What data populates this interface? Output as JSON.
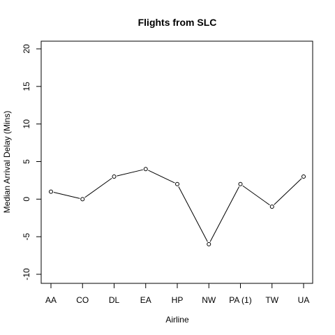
{
  "chart_data": {
    "type": "line",
    "title": "Flights from SLC",
    "xlabel": "Airline",
    "ylabel": "Median Arrival Delay (Mins)",
    "categories": [
      "AA",
      "CO",
      "DL",
      "EA",
      "HP",
      "NW",
      "PA (1)",
      "TW",
      "UA"
    ],
    "values": [
      1,
      0,
      3,
      4,
      2,
      -6,
      2,
      -1,
      3
    ],
    "ylim": [
      -10,
      20
    ],
    "yticks": [
      -10,
      -5,
      0,
      5,
      10,
      15,
      20
    ],
    "grid": false,
    "markers": "open-circle"
  }
}
